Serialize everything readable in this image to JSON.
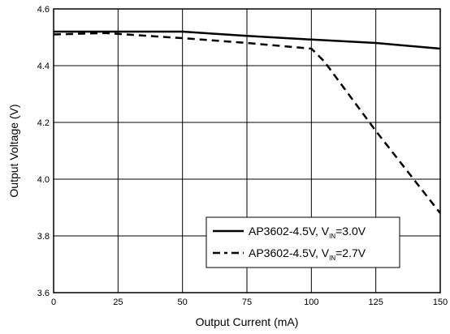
{
  "chart_data": {
    "type": "line",
    "title": "",
    "xlabel": "Output Current (mA)",
    "ylabel": "Output Voltage (V)",
    "xlim": [
      0,
      150
    ],
    "ylim": [
      3.6,
      4.6
    ],
    "xticks": [
      0,
      25,
      50,
      75,
      100,
      125,
      150
    ],
    "yticks": [
      3.6,
      3.8,
      4.0,
      4.2,
      4.4,
      4.6
    ],
    "xtick_labels": [
      "0",
      "25",
      "50",
      "75",
      "100",
      "125",
      "150"
    ],
    "ytick_labels": [
      "3.6",
      "3.8",
      "4.0",
      "4.2",
      "4.4",
      "4.6"
    ],
    "grid": true,
    "legend_position": "bottom-right",
    "series": [
      {
        "name": "AP3602-4.5V, VIN=3.0V",
        "legend_main": "AP3602-4.5V, V",
        "legend_sub": "IN",
        "legend_tail": "=3.0V",
        "style": "solid",
        "x": [
          0,
          25,
          50,
          75,
          100,
          125,
          150
        ],
        "y": [
          4.52,
          4.52,
          4.52,
          4.505,
          4.492,
          4.48,
          4.46
        ]
      },
      {
        "name": "AP3602-4.5V, VIN=2.7V",
        "legend_main": "AP3602-4.5V, V",
        "legend_sub": "IN",
        "legend_tail": "=2.7V",
        "style": "dashed",
        "x": [
          0,
          20,
          50,
          75,
          100,
          105,
          125,
          150
        ],
        "y": [
          4.51,
          4.515,
          4.497,
          4.48,
          4.46,
          4.415,
          4.17,
          3.88
        ]
      }
    ]
  }
}
